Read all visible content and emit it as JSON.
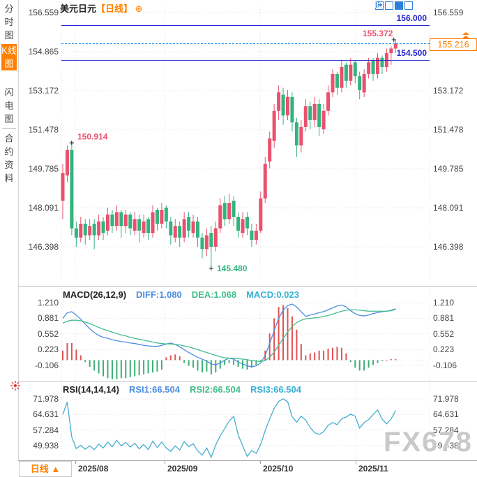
{
  "header": {
    "symbol": "美元日元",
    "period_tag": "【日线】",
    "add_icon": "⊕"
  },
  "sidebar": {
    "tabs": [
      {
        "label": "分时图",
        "active": false
      },
      {
        "label": "K线图",
        "active": true
      },
      {
        "label": "闪电图",
        "active": false
      },
      {
        "label": "合约资料",
        "active": false
      }
    ]
  },
  "toolbar": {
    "icons": [
      "crosshair-icon",
      "axis-chart-icon",
      "active-chart-icon",
      "exit-icon"
    ]
  },
  "main_chart": {
    "y_axis_labels": [
      "156.559",
      "154.865",
      "153.172",
      "151.478",
      "149.785",
      "148.091",
      "146.398"
    ],
    "upper_level_label": "156.000",
    "lower_level_label": "154.500",
    "current_price_label": "155.216",
    "high_marker": "155.372",
    "early_high_marker": "150.914",
    "low_marker": "145.480"
  },
  "macd_panel": {
    "title": "MACD(26,12,9)",
    "diff_label": "DIFF:1.080",
    "dea_label": "DEA:1.068",
    "macd_label": "MACD:0.023",
    "y_axis_labels": [
      "1.210",
      "0.881",
      "0.552",
      "0.223",
      "-0.106"
    ]
  },
  "rsi_panel": {
    "title": "RSI(14,14,14)",
    "rsi1_label": "RSI1:66.504",
    "rsi2_label": "RSI2:66.504",
    "rsi3_label": "RSI3:66.504",
    "y_axis_labels": [
      "71.978",
      "64.631",
      "57.284",
      "49.938"
    ]
  },
  "bottom_bar": {
    "period_label": "日线 ▲",
    "dates": [
      "2025/08",
      "2025/09",
      "2025/10",
      "2025/11"
    ]
  },
  "watermark": "FX678",
  "colors": {
    "up_candle": "#e9516d",
    "down_candle": "#33b37f",
    "accent_orange": "#ff8000",
    "level_blue": "#2424cf",
    "dashed_blue": "#3d9bf0",
    "diff_line": "#4b8de0",
    "dea_line": "#43bd8b",
    "macd_text": "#35b1d4",
    "hist_up": "#e05252",
    "hist_down": "#3fae76",
    "rsi_line": "#46aed0"
  },
  "chart_data": [
    {
      "type": "candlestick",
      "title": "美元日元 日线 (USD/JPY daily)",
      "x_tick_labels": [
        "2025/08",
        "2025/09",
        "2025/10",
        "2025/11"
      ],
      "y_ticks": [
        156.559,
        154.865,
        153.172,
        151.478,
        149.785,
        148.091,
        146.398
      ],
      "levels": {
        "upper_line": 156.0,
        "lower_line": 154.5,
        "current_price": 155.216
      },
      "annotations": {
        "recent_high": 155.372,
        "early_high": 150.914,
        "period_low": 145.48
      },
      "ohlc": [
        [
          148.4,
          150.0,
          147.6,
          149.6
        ],
        [
          149.5,
          150.8,
          149.2,
          150.6
        ],
        [
          150.6,
          150.914,
          146.9,
          147.2
        ],
        [
          147.2,
          147.5,
          146.4,
          146.8
        ],
        [
          146.8,
          147.7,
          146.6,
          147.4
        ],
        [
          147.4,
          147.6,
          146.5,
          146.9
        ],
        [
          146.9,
          147.6,
          146.7,
          147.3
        ],
        [
          147.4,
          147.6,
          146.3,
          146.9
        ],
        [
          146.9,
          147.8,
          146.7,
          147.5
        ],
        [
          147.5,
          147.7,
          146.7,
          147.0
        ],
        [
          147.1,
          148.1,
          146.9,
          147.8
        ],
        [
          147.8,
          148.0,
          147.0,
          147.3
        ],
        [
          147.3,
          148.2,
          147.1,
          147.9
        ],
        [
          147.9,
          148.0,
          146.8,
          147.3
        ],
        [
          147.3,
          148.0,
          147.0,
          147.8
        ],
        [
          147.8,
          147.9,
          146.9,
          147.2
        ],
        [
          147.1,
          147.9,
          146.9,
          147.6
        ],
        [
          147.6,
          147.8,
          146.6,
          147.1
        ],
        [
          147.0,
          147.8,
          146.8,
          147.5
        ],
        [
          147.6,
          147.7,
          146.7,
          147.0
        ],
        [
          147.0,
          148.2,
          146.8,
          147.9
        ],
        [
          148.0,
          148.1,
          147.1,
          147.4
        ],
        [
          147.4,
          148.3,
          147.2,
          148.0
        ],
        [
          148.1,
          148.2,
          147.2,
          147.5
        ],
        [
          147.5,
          147.7,
          146.5,
          146.9
        ],
        [
          146.8,
          147.6,
          146.6,
          147.3
        ],
        [
          147.3,
          147.5,
          146.4,
          146.8
        ],
        [
          146.8,
          147.9,
          146.6,
          147.6
        ],
        [
          147.7,
          147.9,
          146.8,
          147.1
        ],
        [
          147.0,
          147.8,
          146.8,
          147.5
        ],
        [
          147.5,
          147.7,
          146.4,
          146.8
        ],
        [
          146.8,
          147.0,
          145.9,
          146.3
        ],
        [
          146.3,
          147.2,
          146.0,
          146.9
        ],
        [
          147.0,
          147.3,
          145.48,
          146.4
        ],
        [
          146.4,
          147.5,
          146.2,
          147.2
        ],
        [
          147.2,
          148.5,
          147.0,
          148.2
        ],
        [
          148.3,
          148.6,
          147.3,
          147.6
        ],
        [
          147.6,
          148.7,
          147.4,
          148.3
        ],
        [
          148.4,
          148.6,
          147.3,
          147.7
        ],
        [
          147.7,
          147.9,
          146.8,
          147.1
        ],
        [
          147.0,
          147.9,
          146.8,
          147.6
        ],
        [
          147.7,
          147.9,
          146.9,
          147.2
        ],
        [
          147.1,
          147.4,
          146.4,
          146.7
        ],
        [
          146.7,
          147.4,
          146.5,
          147.1
        ],
        [
          147.1,
          148.8,
          147.0,
          148.5
        ],
        [
          148.5,
          150.3,
          148.3,
          150.0
        ],
        [
          150.1,
          151.4,
          149.8,
          151.1
        ],
        [
          151.0,
          152.6,
          150.7,
          152.3
        ],
        [
          152.3,
          153.4,
          151.9,
          153.1
        ],
        [
          153.0,
          153.3,
          151.7,
          152.1
        ],
        [
          152.1,
          153.2,
          151.9,
          152.9
        ],
        [
          152.9,
          153.1,
          151.4,
          151.8
        ],
        [
          151.8,
          152.0,
          150.3,
          150.8
        ],
        [
          150.8,
          151.9,
          150.5,
          151.6
        ],
        [
          151.6,
          152.8,
          151.4,
          152.5
        ],
        [
          152.5,
          152.7,
          151.5,
          151.9
        ],
        [
          151.9,
          152.9,
          151.6,
          152.6
        ],
        [
          152.6,
          152.8,
          151.2,
          151.6
        ],
        [
          151.5,
          152.6,
          151.3,
          152.3
        ],
        [
          152.3,
          153.4,
          152.1,
          153.1
        ],
        [
          153.1,
          154.1,
          152.9,
          153.9
        ],
        [
          153.9,
          154.0,
          153.0,
          153.3
        ],
        [
          153.3,
          154.5,
          153.1,
          154.2
        ],
        [
          154.3,
          154.4,
          153.3,
          153.6
        ],
        [
          153.6,
          154.6,
          153.4,
          154.3
        ],
        [
          154.4,
          154.5,
          153.5,
          153.8
        ],
        [
          153.8,
          154.0,
          152.8,
          153.2
        ],
        [
          153.1,
          154.1,
          152.9,
          153.9
        ],
        [
          153.9,
          154.6,
          153.7,
          154.4
        ],
        [
          154.5,
          154.6,
          153.6,
          153.9
        ],
        [
          153.9,
          154.8,
          153.7,
          154.6
        ],
        [
          154.6,
          154.7,
          153.9,
          154.2
        ],
        [
          154.2,
          155.0,
          154.0,
          154.8
        ],
        [
          154.8,
          155.1,
          154.3,
          155.0
        ],
        [
          155.0,
          155.372,
          154.8,
          155.216
        ]
      ]
    },
    {
      "type": "macd",
      "params": "26,12,9",
      "current": {
        "diff": 1.08,
        "dea": 1.068,
        "macd": 0.023
      },
      "y_ticks": [
        1.21,
        0.881,
        0.552,
        0.223,
        -0.106
      ],
      "diff": [
        0.88,
        1.0,
        1.02,
        0.95,
        0.86,
        0.76,
        0.66,
        0.58,
        0.52,
        0.48,
        0.46,
        0.43,
        0.41,
        0.39,
        0.38,
        0.36,
        0.35,
        0.33,
        0.31,
        0.3,
        0.29,
        0.29,
        0.31,
        0.34,
        0.36,
        0.33,
        0.28,
        0.22,
        0.16,
        0.11,
        0.06,
        0.02,
        -0.02,
        -0.08,
        -0.1,
        -0.06,
        0.0,
        0.04,
        0.02,
        -0.04,
        -0.08,
        -0.12,
        -0.14,
        -0.12,
        -0.06,
        0.1,
        0.35,
        0.62,
        0.88,
        1.05,
        1.15,
        1.18,
        1.12,
        1.02,
        0.92,
        0.95,
        0.97,
        1.0,
        1.02,
        1.06,
        1.1,
        1.14,
        1.16,
        1.12,
        1.04,
        0.98,
        0.94,
        0.93,
        0.95,
        0.98,
        1.0,
        1.02,
        1.03,
        1.05,
        1.08
      ],
      "dea": [
        0.78,
        0.82,
        0.84,
        0.84,
        0.83,
        0.8,
        0.77,
        0.73,
        0.69,
        0.65,
        0.62,
        0.59,
        0.56,
        0.53,
        0.51,
        0.48,
        0.46,
        0.44,
        0.42,
        0.4,
        0.38,
        0.36,
        0.35,
        0.34,
        0.34,
        0.33,
        0.32,
        0.3,
        0.28,
        0.25,
        0.22,
        0.19,
        0.16,
        0.13,
        0.1,
        0.07,
        0.05,
        0.04,
        0.04,
        0.03,
        0.02,
        0.01,
        -0.01,
        -0.02,
        -0.03,
        -0.01,
        0.06,
        0.17,
        0.31,
        0.46,
        0.59,
        0.71,
        0.79,
        0.84,
        0.87,
        0.88,
        0.89,
        0.9,
        0.92,
        0.94,
        0.97,
        1.0,
        1.03,
        1.05,
        1.06,
        1.06,
        1.05,
        1.04,
        1.03,
        1.03,
        1.03,
        1.03,
        1.03,
        1.04,
        1.068
      ],
      "hist": [
        0.2,
        0.36,
        0.36,
        0.22,
        0.1,
        -0.04,
        -0.14,
        -0.22,
        -0.28,
        -0.34,
        -0.38,
        -0.4,
        -0.4,
        -0.38,
        -0.38,
        -0.36,
        -0.34,
        -0.32,
        -0.3,
        -0.28,
        -0.26,
        -0.24,
        -0.2,
        0.06,
        0.1,
        0.12,
        0.08,
        -0.06,
        -0.12,
        -0.16,
        -0.22,
        -0.26,
        -0.24,
        -0.3,
        -0.26,
        -0.18,
        -0.1,
        -0.06,
        -0.1,
        -0.14,
        -0.18,
        -0.2,
        -0.16,
        -0.1,
        -0.02,
        0.2,
        0.56,
        0.88,
        1.12,
        1.16,
        1.1,
        0.92,
        0.64,
        0.34,
        0.1,
        0.14,
        0.16,
        0.2,
        0.2,
        0.24,
        0.26,
        0.28,
        0.26,
        0.14,
        -0.04,
        -0.16,
        -0.22,
        -0.22,
        -0.16,
        -0.1,
        -0.06,
        -0.02,
        0.0,
        0.02,
        0.023
      ]
    },
    {
      "type": "line",
      "name": "RSI(14,14,14)",
      "current": {
        "rsi1": 66.504,
        "rsi2": 66.504,
        "rsi3": 66.504
      },
      "y_ticks": [
        71.978,
        64.631,
        57.284,
        49.938
      ],
      "values": [
        64.6,
        70.5,
        54.0,
        48.5,
        50.0,
        48.2,
        49.8,
        48.0,
        50.6,
        48.8,
        51.6,
        49.4,
        52.4,
        49.8,
        51.4,
        49.2,
        51.0,
        48.4,
        50.4,
        48.0,
        52.0,
        49.0,
        51.6,
        48.8,
        47.2,
        49.8,
        47.8,
        51.8,
        49.4,
        50.8,
        47.4,
        45.4,
        48.8,
        44.4,
        50.2,
        54.5,
        58.0,
        61.5,
        63.7,
        55.0,
        49.8,
        44.8,
        47.6,
        46.2,
        50.5,
        57.0,
        62.5,
        67.5,
        70.8,
        72.0,
        70.6,
        63.5,
        61.0,
        63.8,
        62.0,
        58.5,
        56.0,
        55.2,
        56.5,
        59.5,
        60.8,
        59.8,
        62.6,
        63.4,
        64.8,
        63.8,
        58.2,
        60.8,
        62.2,
        64.6,
        66.8,
        62.4,
        60.2,
        62.5,
        66.504
      ]
    }
  ]
}
